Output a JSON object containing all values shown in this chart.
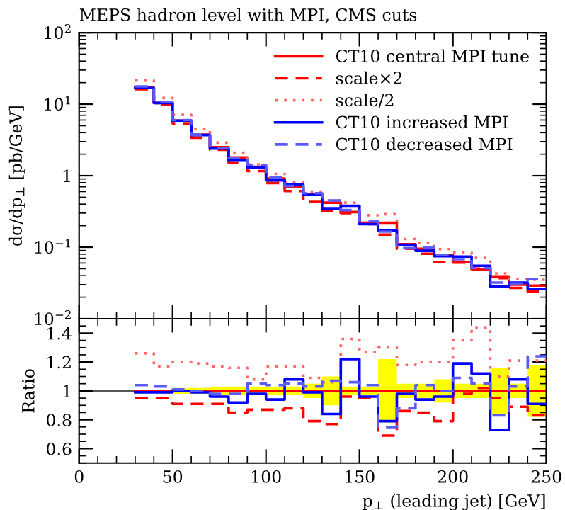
{
  "chart_data": [
    {
      "type": "step",
      "title": "MEPS hadron level with MPI, CMS cuts",
      "ylabel": "dσ/dp$_{⊥}$ [pb/GeV]",
      "log": "y",
      "x": [
        30,
        40,
        50,
        60,
        70,
        80,
        90,
        100,
        110,
        120,
        130,
        140,
        150,
        160,
        170,
        180,
        190,
        200,
        210,
        220,
        230,
        240,
        250
      ],
      "xlim": [
        0,
        250
      ],
      "xticks": [
        0,
        50,
        100,
        150,
        200,
        250
      ],
      "ylim": [
        0.01,
        100
      ],
      "yticks": [
        {
          "value": 0.01,
          "label": "10$^{−2}$"
        },
        {
          "value": 0.1,
          "label": "10$^{−1}$"
        },
        {
          "value": 1,
          "label": "1"
        },
        {
          "value": 10,
          "label": "10$^{1}$"
        },
        {
          "value": 100,
          "label": "10$^{2}$"
        }
      ],
      "tick_labels": "y",
      "legend": "top right",
      "series": [
        {
          "name": "CT10 central MPI tune",
          "color": "#ff0000",
          "line_style": "solid",
          "values": [
            17,
            10.4,
            5.9,
            3.75,
            2.5,
            1.8,
            1.33,
            0.91,
            0.69,
            0.55,
            0.42,
            0.31,
            0.22,
            0.22,
            0.11,
            0.095,
            0.078,
            0.062,
            0.049,
            0.039,
            0.03,
            0.029,
            0.029
          ]
        },
        {
          "name": "scale×2",
          "color": "#ff0000",
          "line_style": "dashed",
          "values": [
            16.2,
            9.9,
            5.4,
            3.4,
            2.3,
            1.53,
            1.16,
            0.79,
            0.61,
            0.43,
            0.32,
            0.3,
            0.21,
            0.15,
            0.095,
            0.081,
            0.062,
            0.061,
            0.05,
            0.037,
            0.027,
            0.024,
            0.024
          ]
        },
        {
          "name": "scale/2",
          "color": "#ff6666",
          "line_style": "dotted",
          "values": [
            21.4,
            12.2,
            7.1,
            4.5,
            2.9,
            2.1,
            1.44,
            1.06,
            0.81,
            0.6,
            0.45,
            0.42,
            0.28,
            0.29,
            0.13,
            0.114,
            0.094,
            0.084,
            0.071,
            0.043,
            0.036,
            0.035,
            0.035
          ]
        },
        {
          "name": "CT10 increased MPI",
          "color": "#0000ff",
          "line_style": "solid",
          "values": [
            16.8,
            10.4,
            5.9,
            3.7,
            2.4,
            1.66,
            1.3,
            0.86,
            0.75,
            0.54,
            0.35,
            0.38,
            0.21,
            0.17,
            0.108,
            0.089,
            0.075,
            0.074,
            0.055,
            0.028,
            0.032,
            0.026,
            0.026
          ]
        },
        {
          "name": "CT10 decreased MPI",
          "color": "#5a5aff",
          "line_style": "dashed",
          "values": [
            17.7,
            10.7,
            6.0,
            3.75,
            2.45,
            1.76,
            1.4,
            0.95,
            0.72,
            0.57,
            0.45,
            0.33,
            0.23,
            0.165,
            0.097,
            0.099,
            0.078,
            0.068,
            0.051,
            0.032,
            0.031,
            0.036,
            0.036
          ]
        }
      ]
    },
    {
      "type": "step",
      "ylabel": "Ratio",
      "xlabel": "p$_{⊥}$ (leading jet) [GeV]",
      "x": [
        30,
        40,
        50,
        60,
        70,
        80,
        90,
        100,
        110,
        120,
        130,
        140,
        150,
        160,
        170,
        180,
        190,
        200,
        210,
        220,
        230,
        240,
        250
      ],
      "xlim": [
        0,
        250
      ],
      "xticks": [
        0,
        50,
        100,
        150,
        200,
        250
      ],
      "ylim": [
        0.5,
        1.5
      ],
      "yticks": [
        0.6,
        0.8,
        1,
        1.2,
        1.4
      ],
      "ref_lines": [
        {
          "axis": "y",
          "value": 1,
          "color": "#555555"
        }
      ],
      "series": [
        {
          "color": "#ff0000",
          "line_style": "solid",
          "values": [
            1,
            1,
            1,
            1,
            1,
            1,
            1,
            1,
            1,
            1,
            1,
            1,
            1,
            1,
            1,
            1,
            1,
            1,
            1,
            1,
            1,
            1,
            1
          ],
          "lower": [
            0.995,
            0.995,
            0.98,
            0.98,
            0.97,
            0.97,
            0.97,
            0.97,
            0.97,
            0.95,
            0.9,
            0.97,
            0.97,
            0.78,
            0.95,
            0.95,
            0.92,
            0.95,
            0.95,
            0.84,
            0.95,
            0.82,
            0.82
          ],
          "upper": [
            1.005,
            1.005,
            1.02,
            1.02,
            1.03,
            1.03,
            1.03,
            1.03,
            1.03,
            1.05,
            1.1,
            1.03,
            1.03,
            1.22,
            1.05,
            1.05,
            1.08,
            1.05,
            1.05,
            1.16,
            1.05,
            1.18,
            1.18
          ]
        },
        {
          "color": "#ff0000",
          "line_style": "dashed",
          "values": [
            0.95,
            0.95,
            0.91,
            0.91,
            0.91,
            0.85,
            0.87,
            0.87,
            0.88,
            0.79,
            0.77,
            0.96,
            0.95,
            0.69,
            0.86,
            0.85,
            0.79,
            0.98,
            1.02,
            0.95,
            0.89,
            0.83,
            0.83
          ]
        },
        {
          "color": "#ff6666",
          "line_style": "dotted",
          "values": [
            1.26,
            1.17,
            1.2,
            1.19,
            1.17,
            1.16,
            1.08,
            1.17,
            1.17,
            1.09,
            1.06,
            1.36,
            1.27,
            1.3,
            1.18,
            1.2,
            1.2,
            1.35,
            1.44,
            1.1,
            1.21,
            1.21,
            1.21
          ]
        },
        {
          "color": "#0000ff",
          "line_style": "solid",
          "values": [
            0.99,
            0.99,
            1.0,
            0.99,
            0.96,
            0.92,
            0.98,
            0.94,
            1.08,
            0.99,
            0.84,
            1.22,
            0.96,
            0.79,
            0.98,
            0.94,
            0.96,
            1.19,
            1.12,
            0.73,
            1.08,
            0.91,
            0.91
          ]
        },
        {
          "color": "#5a5aff",
          "line_style": "dashed",
          "values": [
            1.04,
            1.03,
            1.01,
            1.0,
            0.98,
            0.98,
            1.05,
            1.04,
            1.05,
            1.03,
            1.07,
            1.06,
            1.04,
            0.75,
            0.88,
            1.04,
            1.0,
            1.09,
            1.05,
            0.83,
            1.03,
            1.24,
            1.24
          ]
        }
      ]
    }
  ]
}
